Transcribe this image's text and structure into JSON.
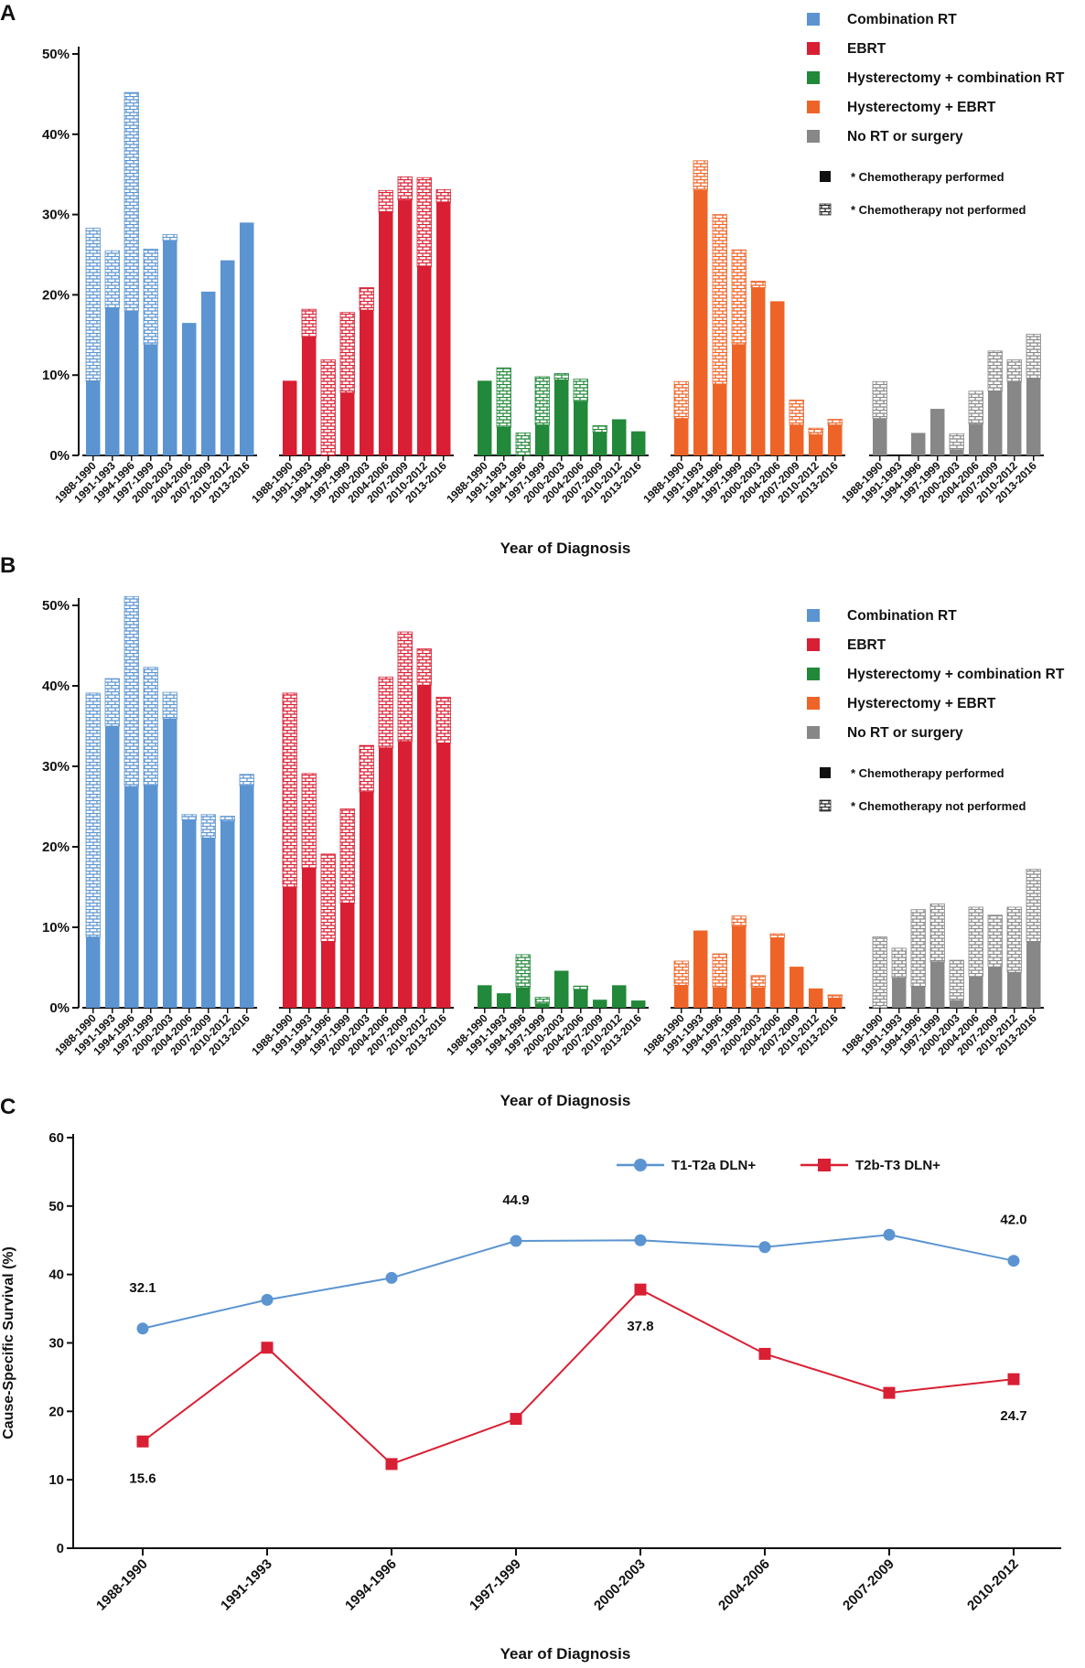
{
  "colors": {
    "combination_rt": "#5b94d1",
    "ebrt": "#d91f33",
    "hyst_combination_rt": "#22883a",
    "hyst_ebrt": "#ee6428",
    "no_rt_surgery": "#878787",
    "line_t1": "#5b94d1",
    "line_t2": "#d91f33",
    "axis": "#111111"
  },
  "chart_data": [
    {
      "panel": "A",
      "type": "bar",
      "xlabel": "Year of Diagnosis",
      "ylabel": "",
      "ylim": [
        0,
        50
      ],
      "yticks": [
        "0%",
        "10%",
        "20%",
        "30%",
        "40%",
        "50%"
      ],
      "categories": [
        "1988-1990",
        "1991-1993",
        "1994-1996",
        "1997-1999",
        "2000-2003",
        "2004-2006",
        "2007-2009",
        "2010-2012",
        "2013-2016"
      ],
      "legend": [
        "Combination RT",
        "EBRT",
        "Hysterectomy + combination RT",
        "Hysterectomy + EBRT",
        "No RT or surgery"
      ],
      "legend_markers": [
        "* Chemotherapy performed",
        "* Chemotherapy not performed"
      ],
      "groups": [
        {
          "name": "Combination RT",
          "color_key": "combination_rt",
          "chemo": [
            9.3,
            18.3,
            18.0,
            13.8,
            26.7,
            16.5,
            20.4,
            24.3,
            29.0
          ],
          "total": [
            28.3,
            25.5,
            45.2,
            25.7,
            27.5,
            16.5,
            20.4,
            24.3,
            29.0
          ]
        },
        {
          "name": "EBRT",
          "color_key": "ebrt",
          "chemo": [
            9.3,
            14.7,
            0,
            7.8,
            18.1,
            30.3,
            31.8,
            23.5,
            31.5
          ],
          "total": [
            9.3,
            18.2,
            11.9,
            17.8,
            20.9,
            33.0,
            34.7,
            34.6,
            33.1
          ]
        },
        {
          "name": "Hysterectomy + combination RT",
          "color_key": "hyst_combination_rt",
          "chemo": [
            9.3,
            3.5,
            0,
            3.8,
            9.4,
            6.7,
            2.9,
            4.5,
            3.0
          ],
          "total": [
            9.3,
            10.9,
            2.8,
            9.8,
            10.2,
            9.5,
            3.7,
            4.5,
            3.0
          ]
        },
        {
          "name": "Hysterectomy + EBRT",
          "color_key": "hyst_ebrt",
          "chemo": [
            4.6,
            33.0,
            8.9,
            13.8,
            20.9,
            19.2,
            3.8,
            2.6,
            3.8
          ],
          "total": [
            9.2,
            36.7,
            30.0,
            25.6,
            21.7,
            19.2,
            6.9,
            3.4,
            4.5
          ]
        },
        {
          "name": "No RT or surgery",
          "color_key": "no_rt_surgery",
          "chemo": [
            4.6,
            0,
            2.8,
            5.8,
            0.7,
            3.9,
            8.0,
            9.2,
            9.6
          ],
          "total": [
            9.2,
            0,
            2.8,
            5.8,
            2.7,
            8.0,
            13.0,
            11.9,
            15.1
          ]
        }
      ]
    },
    {
      "panel": "B",
      "type": "bar",
      "xlabel": "Year of Diagnosis",
      "ylabel": "",
      "ylim": [
        0,
        50
      ],
      "yticks": [
        "0%",
        "10%",
        "20%",
        "30%",
        "40%",
        "50%"
      ],
      "categories": [
        "1988-1990",
        "1991-1993",
        "1994-1996",
        "1997-1999",
        "2000-2003",
        "2004-2006",
        "2007-2009",
        "2010-2012",
        "2013-2016"
      ],
      "legend": [
        "Combination RT",
        "EBRT",
        "Hysterectomy + combination RT",
        "Hysterectomy + EBRT",
        "No RT or surgery"
      ],
      "legend_markers": [
        "* Chemotherapy performed",
        "* Chemotherapy not performed"
      ],
      "groups": [
        {
          "name": "Combination RT",
          "color_key": "combination_rt",
          "chemo": [
            8.8,
            35.0,
            27.5,
            27.6,
            35.9,
            23.3,
            21.1,
            23.2,
            27.6
          ],
          "total": [
            39.1,
            40.9,
            51.1,
            42.3,
            39.2,
            24.0,
            24.0,
            23.8,
            29.0
          ]
        },
        {
          "name": "EBRT",
          "color_key": "ebrt",
          "chemo": [
            15.0,
            17.3,
            8.2,
            13.0,
            26.8,
            32.3,
            33.1,
            40.1,
            32.9
          ],
          "total": [
            39.1,
            29.1,
            19.1,
            24.7,
            32.6,
            41.1,
            46.7,
            44.6,
            38.6
          ]
        },
        {
          "name": "Hysterectomy + combination RT",
          "color_key": "hyst_combination_rt",
          "chemo": [
            2.8,
            1.8,
            2.5,
            0.5,
            4.6,
            2.2,
            1.0,
            2.8,
            0.9
          ],
          "total": [
            2.8,
            1.8,
            6.6,
            1.3,
            4.6,
            2.7,
            1.0,
            2.8,
            0.9
          ]
        },
        {
          "name": "Hysterectomy + EBRT",
          "color_key": "hyst_ebrt",
          "chemo": [
            2.8,
            9.6,
            2.5,
            10.1,
            2.5,
            8.7,
            5.1,
            2.4,
            1.2
          ],
          "total": [
            5.8,
            9.6,
            6.7,
            11.4,
            4.0,
            9.2,
            5.1,
            2.4,
            1.6
          ]
        },
        {
          "name": "No RT or surgery",
          "color_key": "no_rt_surgery",
          "chemo": [
            0,
            3.7,
            2.6,
            5.7,
            0.9,
            3.9,
            5.1,
            4.4,
            8.2
          ],
          "total": [
            8.8,
            7.4,
            12.2,
            12.9,
            5.9,
            12.5,
            11.5,
            12.5,
            17.2
          ]
        }
      ]
    },
    {
      "panel": "C",
      "type": "line",
      "xlabel": "Year of Diagnosis",
      "ylabel": "Cause-Specific Survival (%)",
      "ylim": [
        0,
        60
      ],
      "yticks": [
        "0",
        "10",
        "20",
        "30",
        "40",
        "50",
        "60"
      ],
      "categories": [
        "1988-1990",
        "1991-1993",
        "1994-1996",
        "1997-1999",
        "2000-2003",
        "2004-2006",
        "2007-2009",
        "2010-2012"
      ],
      "series": [
        {
          "name": "T1-T2a DLN+",
          "color_key": "line_t1",
          "marker": "circle",
          "values": [
            32.1,
            36.3,
            39.5,
            44.9,
            45.0,
            44.0,
            45.8,
            42.0
          ],
          "labels": [
            "32.1",
            "",
            "",
            "44.9",
            "",
            "",
            "",
            "42.0"
          ],
          "label_pos": [
            "above",
            "",
            "",
            "above",
            "",
            "",
            "",
            "above"
          ]
        },
        {
          "name": "T2b-T3 DLN+",
          "color_key": "line_t2",
          "marker": "square",
          "values": [
            15.6,
            29.3,
            12.3,
            18.9,
            37.8,
            28.4,
            22.7,
            24.7
          ],
          "labels": [
            "15.6",
            "",
            "",
            "",
            "37.8",
            "",
            "",
            "24.7"
          ],
          "label_pos": [
            "below",
            "",
            "",
            "",
            "below",
            "",
            "",
            "below"
          ]
        }
      ]
    }
  ],
  "panel_letters": [
    "A",
    "B",
    "C"
  ]
}
